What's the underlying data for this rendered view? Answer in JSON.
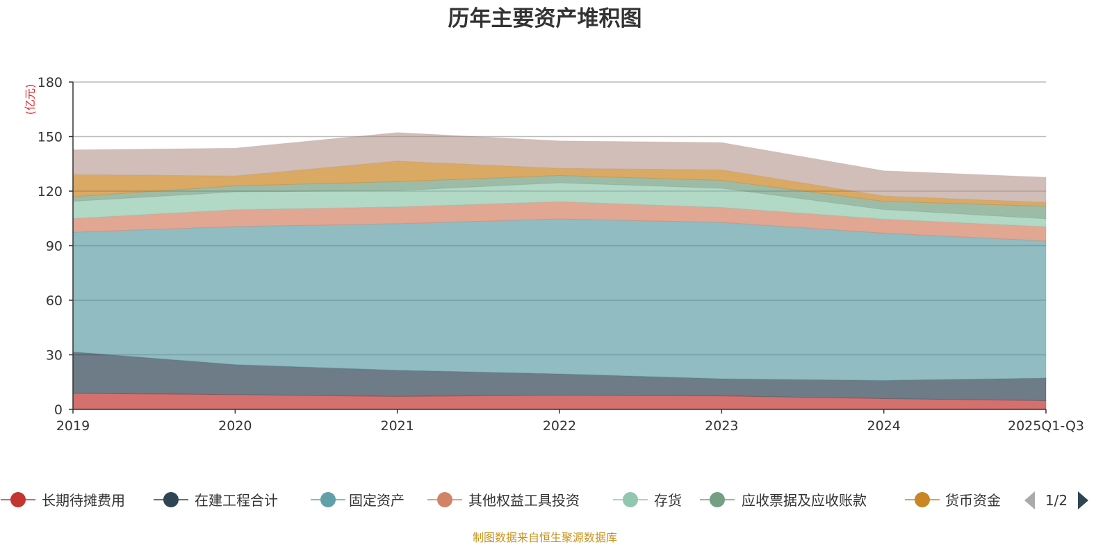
{
  "chart_data": {
    "type": "area",
    "stacked": true,
    "title": "历年主要资产堆积图",
    "ylabel": "(亿元)",
    "xlabel": "",
    "ylim": [
      0,
      180
    ],
    "yticks": [
      "0",
      "30",
      "60",
      "90",
      "120",
      "150",
      "180"
    ],
    "categories": [
      "2019",
      "2020",
      "2021",
      "2022",
      "2023",
      "2024",
      "2025Q1-Q3"
    ],
    "grid": true,
    "legend_position": "bottom",
    "series": [
      {
        "name": "长期待摊费用",
        "color": "#c23531",
        "values": [
          8.8,
          8.1,
          7.1,
          7.8,
          7.4,
          5.9,
          4.8
        ]
      },
      {
        "name": "在建工程合计",
        "color": "#2f4554",
        "values": [
          22.8,
          16.5,
          14.4,
          11.7,
          9.4,
          10.0,
          12.4
        ]
      },
      {
        "name": "固定资产",
        "color": "#61a0a8",
        "values": [
          65.8,
          75.9,
          80.6,
          85.2,
          86.0,
          81.0,
          75.4
        ]
      },
      {
        "name": "其他权益工具投资",
        "color": "#d48265",
        "values": [
          7.5,
          9.3,
          9.2,
          9.5,
          8.2,
          7.7,
          7.8
        ]
      },
      {
        "name": "存货",
        "color": "#91c7ae",
        "values": [
          9.5,
          9.8,
          9.0,
          10.4,
          10.6,
          5.3,
          4.4
        ]
      },
      {
        "name": "应收票据及应收账款",
        "color": "#749f83",
        "values": [
          2.5,
          3.3,
          4.9,
          4.0,
          4.3,
          4.5,
          6.9
        ]
      },
      {
        "name": "货币资金",
        "color": "#ca8622",
        "values": [
          12.2,
          5.4,
          11.3,
          3.9,
          5.8,
          2.9,
          2.1
        ]
      },
      {
        "color": "#bda29a",
        "values": [
          13.6,
          15.3,
          15.7,
          15.1,
          15.0,
          13.9,
          13.8
        ]
      }
    ]
  },
  "legend": {
    "page": "1/2"
  },
  "source": "制图数据来自恒生聚源数据库",
  "colors": {
    "source_text": "#c8941f",
    "unit_label": "#e8262c"
  }
}
